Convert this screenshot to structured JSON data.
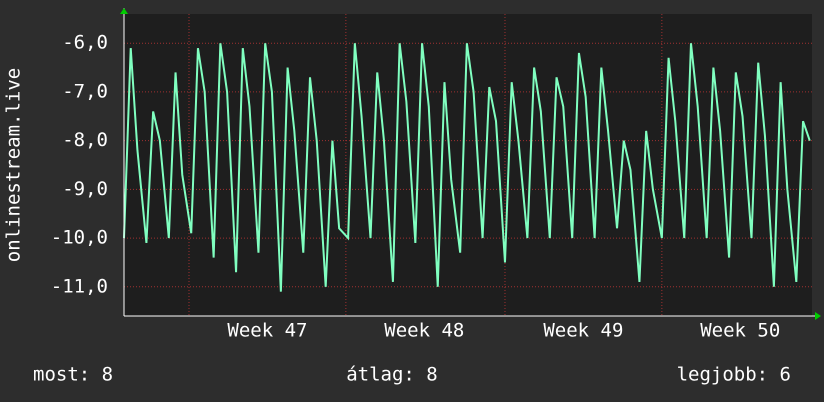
{
  "chart_data": {
    "type": "line",
    "ylabel": "onlinestream.live",
    "x": [
      0,
      0.3,
      0.6,
      1,
      1.3,
      1.6,
      2,
      2.3,
      2.6,
      3,
      3.3,
      3.6,
      4,
      4.3,
      4.6,
      5,
      5.3,
      5.6,
      6,
      6.3,
      6.6,
      7,
      7.3,
      7.6,
      8,
      8.3,
      8.6,
      9,
      9.3,
      9.6,
      10,
      10.3,
      10.6,
      11,
      11.3,
      11.6,
      12,
      12.3,
      12.6,
      13,
      13.3,
      13.6,
      14,
      14.3,
      14.6,
      15,
      15.3,
      15.6,
      16,
      16.3,
      16.6,
      17,
      17.3,
      17.6,
      18,
      18.3,
      18.6,
      19,
      19.3,
      19.6,
      20,
      20.3,
      20.6,
      21,
      21.3,
      21.6,
      22,
      22.3,
      22.6,
      23,
      23.3,
      23.6,
      24,
      24.3,
      24.6,
      25,
      25.3,
      25.6,
      26,
      26.3,
      26.6,
      27,
      27.3,
      27.6,
      28,
      28.3,
      28.6,
      29,
      29.3,
      29.6,
      30,
      30.3,
      30.6
    ],
    "series": [
      {
        "color": "#80ffc0",
        "values": [
          -10,
          -6.1,
          -8.2,
          -10.1,
          -7.4,
          -8.0,
          -10.0,
          -6.6,
          -8.7,
          -9.9,
          -6.1,
          -7.0,
          -10.4,
          -6.0,
          -7.0,
          -10.7,
          -6.1,
          -7.3,
          -10.3,
          -6.0,
          -7.0,
          -11.1,
          -6.5,
          -7.8,
          -10.3,
          -6.7,
          -8.0,
          -11.0,
          -8.0,
          -9.8,
          -10.0,
          -6.0,
          -7.5,
          -10.0,
          -6.6,
          -8.0,
          -10.9,
          -6.0,
          -7.2,
          -10.1,
          -6.0,
          -7.3,
          -11.0,
          -6.8,
          -8.8,
          -10.3,
          -6.0,
          -7.0,
          -10.0,
          -6.9,
          -7.6,
          -10.5,
          -6.8,
          -8.0,
          -10.0,
          -6.5,
          -7.4,
          -10.0,
          -6.7,
          -7.3,
          -10.0,
          -6.2,
          -7.1,
          -10.0,
          -6.5,
          -7.8,
          -9.8,
          -8.0,
          -8.6,
          -10.9,
          -7.8,
          -9.0,
          -10.0,
          -6.3,
          -7.6,
          -10.0,
          -6.0,
          -7.3,
          -10.0,
          -6.5,
          -7.8,
          -10.4,
          -6.6,
          -7.5,
          -10.0,
          -6.4,
          -7.9,
          -11.0,
          -6.8,
          -9.0,
          -10.9,
          -7.6,
          -8.0
        ]
      }
    ],
    "xlim": [
      0,
      30.7
    ],
    "xticks": [
      {
        "value": 6.4,
        "label": "Week 47"
      },
      {
        "value": 13.4,
        "label": "Week 48"
      },
      {
        "value": 20.5,
        "label": "Week 49"
      },
      {
        "value": 27.5,
        "label": "Week 50"
      }
    ],
    "xgrid": [
      2.9,
      9.9,
      17.0,
      24.0
    ],
    "ylim": [
      -11.6,
      -5.4
    ],
    "yticks": [
      {
        "value": -6,
        "label": "-6,0"
      },
      {
        "value": -7,
        "label": "-7,0"
      },
      {
        "value": -8,
        "label": "-8,0"
      },
      {
        "value": -9,
        "label": "-9,0"
      },
      {
        "value": -10,
        "label": "-10,0"
      },
      {
        "value": -11,
        "label": "-11,0"
      }
    ],
    "grid": true,
    "annotations": [
      "most: 8",
      "átlag: 8",
      "legjobb: 6"
    ]
  }
}
